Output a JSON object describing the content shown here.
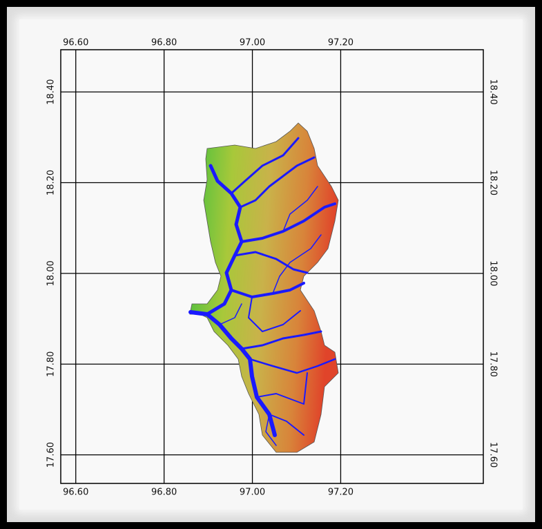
{
  "map": {
    "xlim": [
      96.566,
      97.523
    ],
    "ylim": [
      17.537,
      18.493
    ],
    "xticks": [
      {
        "value": 96.6,
        "label": "96.60"
      },
      {
        "value": 96.8,
        "label": "96.80"
      },
      {
        "value": 97.0,
        "label": "97.00"
      },
      {
        "value": 97.2,
        "label": "97.20"
      }
    ],
    "yticks": [
      {
        "value": 18.4,
        "label": "18.40"
      },
      {
        "value": 18.2,
        "label": "18.20"
      },
      {
        "value": 18.0,
        "label": "18.00"
      },
      {
        "value": 17.8,
        "label": "17.80"
      },
      {
        "value": 17.6,
        "label": "17.60"
      }
    ],
    "grid": true
  }
}
